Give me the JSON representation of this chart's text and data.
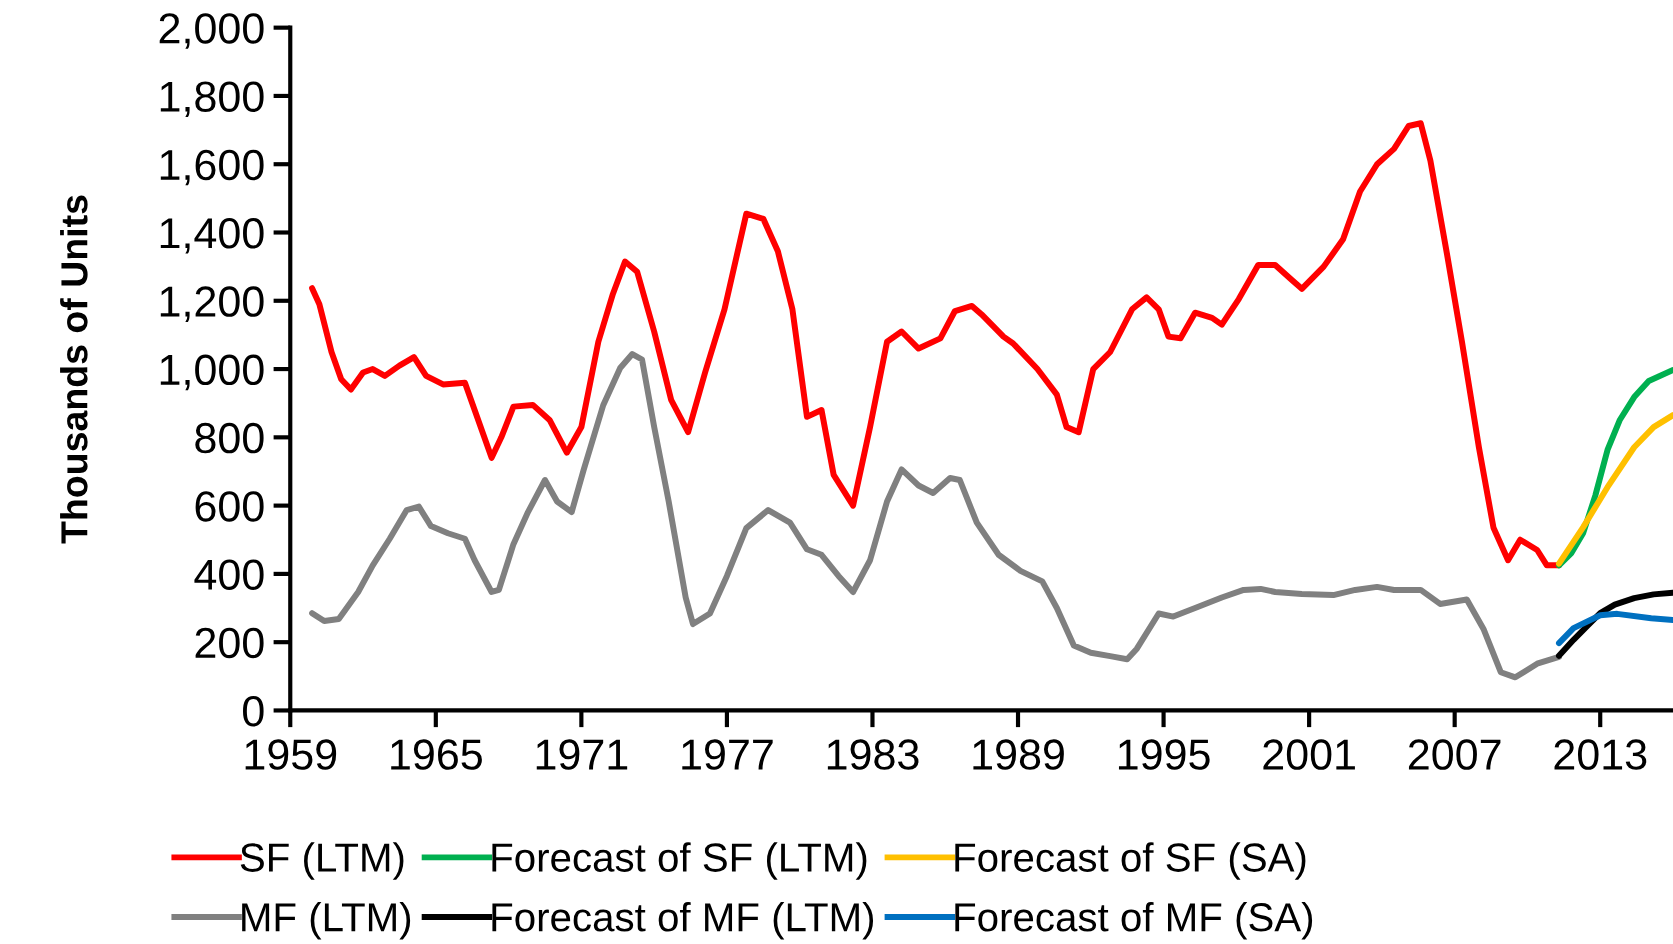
{
  "chart_data": {
    "type": "line",
    "ylabel": "Thousands of Units",
    "xlim": [
      1959,
      2016
    ],
    "ylim": [
      0,
      2000
    ],
    "xticks": [
      1959,
      1965,
      1971,
      1977,
      1983,
      1989,
      1995,
      2001,
      2007,
      2013
    ],
    "yticks": [
      0,
      {
        "value": 200,
        "label": "200"
      },
      {
        "value": 400,
        "label": "400"
      },
      {
        "value": 600,
        "label": "600"
      },
      {
        "value": 800,
        "label": "800"
      },
      {
        "value": 1000,
        "label": "1,000"
      },
      {
        "value": 1200,
        "label": "1,200"
      },
      {
        "value": 1400,
        "label": "1,400"
      },
      {
        "value": 1600,
        "label": "1,600"
      },
      {
        "value": 1800,
        "label": "1,800"
      },
      {
        "value": 2000,
        "label": "2,000"
      }
    ],
    "grid": false,
    "legend": "bottom",
    "marker": "none",
    "line_style": "solid",
    "series": [
      {
        "name": "SF (LTM)",
        "color": "#ff0000",
        "x": [
          1959.9,
          1960.2,
          1960.7,
          1961.1,
          1961.5,
          1962.0,
          1962.4,
          1962.9,
          1963.5,
          1964.1,
          1964.6,
          1965.3,
          1966.2,
          1966.6,
          1967.3,
          1967.7,
          1968.2,
          1969.0,
          1969.7,
          1970.4,
          1971.0,
          1971.7,
          1972.3,
          1972.8,
          1973.3,
          1974.0,
          1974.7,
          1975.4,
          1976.1,
          1976.9,
          1977.8,
          1978.5,
          1979.1,
          1979.7,
          1980.3,
          1980.9,
          1981.4,
          1982.2,
          1982.9,
          1983.6,
          1984.2,
          1984.9,
          1985.8,
          1986.4,
          1987.1,
          1987.5,
          1988.4,
          1988.8,
          1989.8,
          1990.6,
          1991.0,
          1991.5,
          1992.1,
          1992.8,
          1993.7,
          1994.3,
          1994.8,
          1995.2,
          1995.7,
          1996.3,
          1997.0,
          1997.4,
          1998.1,
          1998.9,
          1999.6,
          2000.3,
          2000.7,
          2001.6,
          2002.4,
          2003.1,
          2003.8,
          2004.5,
          2005.1,
          2005.6,
          2006.0,
          2006.7,
          2007.3,
          2008.0,
          2008.6,
          2009.2,
          2009.7,
          2010.4,
          2010.8,
          2011.3
        ],
        "values": [
          1237,
          1190,
          1050,
          970,
          940,
          990,
          1000,
          980,
          1010,
          1035,
          980,
          955,
          960,
          880,
          740,
          800,
          890,
          895,
          850,
          755,
          830,
          1080,
          1220,
          1315,
          1285,
          1110,
          910,
          815,
          990,
          1175,
          1455,
          1440,
          1345,
          1175,
          860,
          880,
          690,
          600,
          830,
          1080,
          1110,
          1060,
          1090,
          1170,
          1185,
          1160,
          1095,
          1075,
          1000,
          925,
          830,
          815,
          1000,
          1050,
          1175,
          1210,
          1175,
          1095,
          1090,
          1165,
          1150,
          1130,
          1205,
          1305,
          1305,
          1260,
          1235,
          1300,
          1380,
          1520,
          1600,
          1645,
          1712,
          1720,
          1610,
          1330,
          1080,
          770,
          535,
          440,
          500,
          470,
          425,
          425
        ]
      },
      {
        "name": "MF (LTM)",
        "color": "#808080",
        "x": [
          1959.9,
          1960.4,
          1961.0,
          1961.8,
          1962.4,
          1963.1,
          1963.8,
          1964.3,
          1964.8,
          1965.5,
          1966.2,
          1966.6,
          1967.3,
          1967.6,
          1968.2,
          1968.8,
          1969.5,
          1970.0,
          1970.6,
          1971.1,
          1971.9,
          1972.6,
          1973.1,
          1973.5,
          1974.0,
          1974.6,
          1975.3,
          1975.6,
          1976.3,
          1977.0,
          1977.8,
          1978.7,
          1979.6,
          1980.3,
          1980.9,
          1981.6,
          1982.2,
          1982.9,
          1983.6,
          1984.2,
          1984.9,
          1985.5,
          1986.2,
          1986.6,
          1987.3,
          1988.2,
          1989.1,
          1990.0,
          1990.6,
          1991.3,
          1992.0,
          1992.8,
          1993.5,
          1993.9,
          1994.8,
          1995.4,
          1996.3,
          1997.4,
          1998.3,
          1999.0,
          1999.6,
          2000.7,
          2002.0,
          2002.9,
          2003.8,
          2004.5,
          2005.6,
          2006.4,
          2007.5,
          2008.2,
          2008.9,
          2009.5,
          2010.4,
          2011.3
        ],
        "values": [
          285,
          262,
          268,
          347,
          425,
          503,
          587,
          597,
          540,
          519,
          503,
          440,
          347,
          353,
          487,
          581,
          675,
          612,
          581,
          706,
          894,
          1003,
          1044,
          1028,
          831,
          612,
          331,
          253,
          284,
          394,
          534,
          587,
          550,
          472,
          456,
          394,
          347,
          440,
          612,
          706,
          659,
          637,
          681,
          675,
          550,
          456,
          409,
          378,
          300,
          190,
          169,
          159,
          150,
          181,
          284,
          275,
          300,
          331,
          353,
          356,
          347,
          341,
          338,
          353,
          362,
          353,
          353,
          312,
          325,
          237,
          112,
          97,
          137,
          157
        ]
      },
      {
        "name": "Forecast of SF (LTM)",
        "color": "#00b050",
        "x": [
          2011.3,
          2011.8,
          2012.3,
          2012.8,
          2013.3,
          2013.8,
          2014.4,
          2015.0,
          2016.0
        ],
        "values": [
          425,
          460,
          520,
          630,
          763,
          850,
          918,
          965,
          997
        ]
      },
      {
        "name": "Forecast of MF (LTM)",
        "color": "#000000",
        "x": [
          2011.3,
          2011.9,
          2012.5,
          2013.0,
          2013.6,
          2014.4,
          2015.2,
          2016.0
        ],
        "values": [
          160,
          207,
          250,
          285,
          310,
          329,
          340,
          345
        ]
      },
      {
        "name": "Forecast of SF (SA)",
        "color": "#ffc000",
        "x": [
          2011.3,
          2012.3,
          2013.3,
          2014.4,
          2015.2,
          2016.0
        ],
        "values": [
          430,
          537,
          654,
          771,
          830,
          865
        ]
      },
      {
        "name": "Forecast of MF (SA)",
        "color": "#0070c0",
        "x": [
          2011.3,
          2011.9,
          2013.0,
          2013.7,
          2015.1,
          2016.0
        ],
        "values": [
          197,
          241,
          279,
          283,
          270,
          265
        ]
      }
    ]
  }
}
